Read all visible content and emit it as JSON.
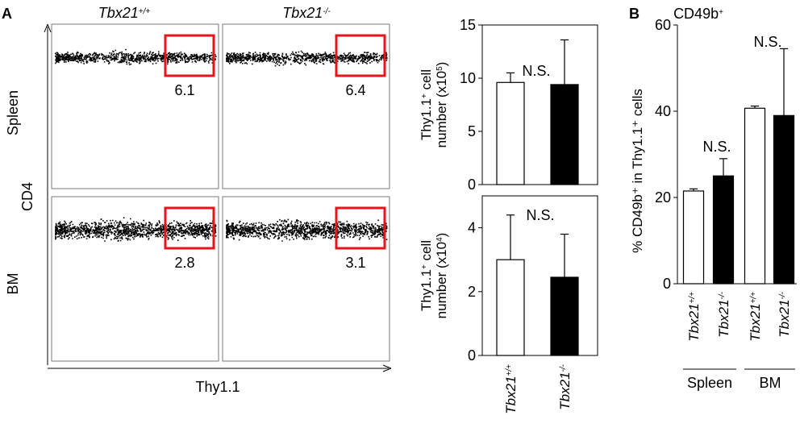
{
  "panel_labels": {
    "a": "A",
    "b": "B"
  },
  "flow": {
    "col_titles": [
      {
        "base": "Tbx21",
        "sup": "+/+"
      },
      {
        "base": "Tbx21",
        "sup": "-/-"
      }
    ],
    "row_titles": [
      "Spleen",
      "BM"
    ],
    "y_axis_label": "CD4",
    "x_axis_label": "Thy1.1",
    "gate_values": [
      "6.1",
      "6.4",
      "2.8",
      "3.1"
    ],
    "gate_color": "#e8141c"
  },
  "chart_data": [
    {
      "type": "bar",
      "panel": "A",
      "categories": [
        {
          "base": "Tbx21",
          "sup": "+/+"
        },
        {
          "base": "Tbx21",
          "sup": "-/-"
        }
      ],
      "values": [
        9.6,
        9.4
      ],
      "errors": [
        0.9,
        4.2
      ],
      "bar_colors": [
        "#ffffff",
        "#000000"
      ],
      "ylabel_line1": {
        "base": "Thy1.1",
        "sup": "+",
        "rest": " cell"
      },
      "ylabel_line2": {
        "base": "number (x10",
        "sup": "5",
        "rest": ")"
      },
      "ylim": [
        0,
        15
      ],
      "yticks": [
        "15",
        "10",
        "5",
        "0"
      ],
      "annotation": "N.S."
    },
    {
      "type": "bar",
      "panel": "A",
      "categories": [
        {
          "base": "Tbx21",
          "sup": "+/+"
        },
        {
          "base": "Tbx21",
          "sup": "-/-"
        }
      ],
      "values": [
        3.0,
        2.45
      ],
      "errors": [
        1.4,
        1.35
      ],
      "bar_colors": [
        "#ffffff",
        "#000000"
      ],
      "ylabel_line1": {
        "base": "Thy1.1",
        "sup": "+",
        "rest": " cell"
      },
      "ylabel_line2": {
        "base": "number (x10",
        "sup": "4",
        "rest": ")"
      },
      "ylim": [
        0,
        5
      ],
      "yticks": [
        "4",
        "2",
        "0"
      ],
      "annotation": "N.S."
    },
    {
      "type": "bar",
      "panel": "B",
      "title": {
        "base": "CD49b",
        "sup": "+"
      },
      "categories": [
        {
          "base": "Tbx21",
          "sup": "+/+"
        },
        {
          "base": "Tbx21",
          "sup": "-/-"
        },
        {
          "base": "Tbx21",
          "sup": "+/+"
        },
        {
          "base": "Tbx21",
          "sup": "-/-"
        }
      ],
      "groups": [
        "Spleen",
        "BM"
      ],
      "values": [
        21.5,
        25.0,
        40.7,
        39.0
      ],
      "errors": [
        0.5,
        4.0,
        0.5,
        15.5
      ],
      "bar_colors": [
        "#ffffff",
        "#000000",
        "#ffffff",
        "#000000"
      ],
      "ylabel": "% CD49b⁺ in Thy1.1⁺ cells",
      "ylim": [
        0,
        60
      ],
      "yticks": [
        "60",
        "40",
        "20",
        "0"
      ],
      "annotations": [
        "N.S.",
        "N.S."
      ]
    }
  ]
}
